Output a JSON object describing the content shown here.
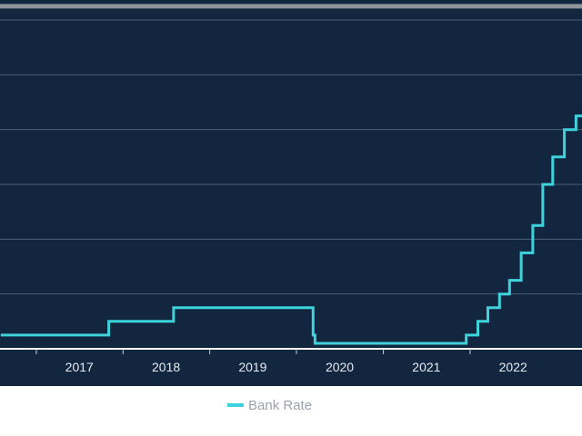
{
  "chart_data": {
    "type": "line",
    "title": "",
    "xlabel": "",
    "ylabel": "",
    "x_tick_labels": [
      "2017",
      "2018",
      "2019",
      "2020",
      "2021",
      "2022"
    ],
    "x_range": [
      "2016-08-01",
      "2022-12-31"
    ],
    "y_range": [
      0,
      6
    ],
    "grid": true,
    "legend_position": "bottom-center",
    "series": [
      {
        "name": "Bank Rate",
        "color": "#3ed3dc",
        "step": true,
        "points": [
          {
            "x": "2016-08-04",
            "y": 0.25
          },
          {
            "x": "2017-11-02",
            "y": 0.5
          },
          {
            "x": "2018-08-02",
            "y": 0.75
          },
          {
            "x": "2020-03-11",
            "y": 0.25
          },
          {
            "x": "2020-03-19",
            "y": 0.1
          },
          {
            "x": "2021-12-16",
            "y": 0.25
          },
          {
            "x": "2022-02-03",
            "y": 0.5
          },
          {
            "x": "2022-03-17",
            "y": 0.75
          },
          {
            "x": "2022-05-05",
            "y": 1.0
          },
          {
            "x": "2022-06-16",
            "y": 1.25
          },
          {
            "x": "2022-08-04",
            "y": 1.75
          },
          {
            "x": "2022-09-22",
            "y": 2.25
          },
          {
            "x": "2022-11-03",
            "y": 3.0
          },
          {
            "x": "2022-12-15",
            "y": 3.5
          },
          {
            "x": "2023-02-02",
            "y": 4.0
          },
          {
            "x": "2023-03-23",
            "y": 4.25
          }
        ]
      }
    ],
    "reference_line": {
      "y": 6.25,
      "color": "#8f959b"
    }
  }
}
